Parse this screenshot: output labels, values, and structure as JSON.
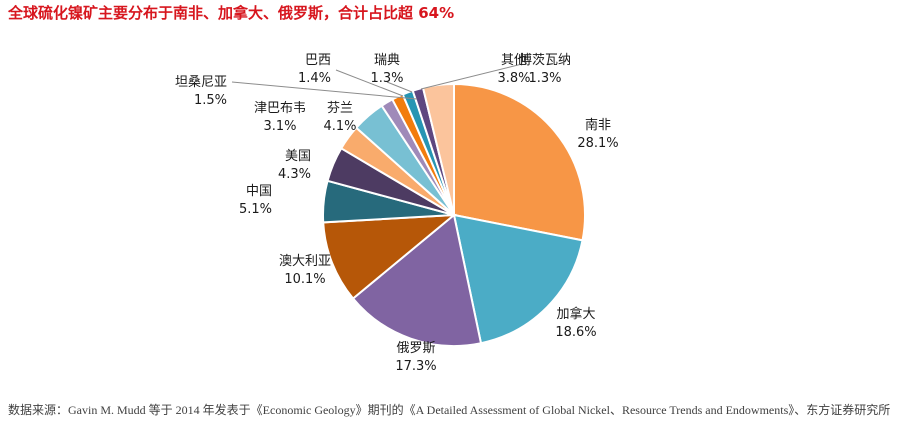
{
  "chart_data": {
    "type": "pie",
    "title": "全球硫化镍矿主要分布于南非、加拿大、俄罗斯，合计占比超 64%",
    "slices": [
      {
        "label": "南非",
        "value": 28.1,
        "display": "28.1%",
        "color": "#f79646"
      },
      {
        "label": "加拿大",
        "value": 18.6,
        "display": "18.6%",
        "color": "#4bacc6"
      },
      {
        "label": "俄罗斯",
        "value": 17.3,
        "display": "17.3%",
        "color": "#8064a2"
      },
      {
        "label": "澳大利亚",
        "value": 10.1,
        "display": "10.1%",
        "color": "#b65708"
      },
      {
        "label": "中国",
        "value": 5.1,
        "display": "5.1%",
        "color": "#276a7c"
      },
      {
        "label": "美国",
        "value": 4.3,
        "display": "4.3%",
        "color": "#4d3b62"
      },
      {
        "label": "津巴布韦",
        "value": 3.1,
        "display": "3.1%",
        "color": "#f9ab6c"
      },
      {
        "label": "芬兰",
        "value": 4.1,
        "display": "4.1%",
        "color": "#78c0d3"
      },
      {
        "label": "坦桑尼亚",
        "value": 1.5,
        "display": "1.5%",
        "color": "#9f8ab9"
      },
      {
        "label": "巴西",
        "value": 1.4,
        "display": "1.4%",
        "color": "#f27c0d"
      },
      {
        "label": "瑞典",
        "value": 1.3,
        "display": "1.3%",
        "color": "#2795b3"
      },
      {
        "label": "博茨瓦纳",
        "value": 1.3,
        "display": "1.3%",
        "color": "#5e4780"
      },
      {
        "label": "其他",
        "value": 3.8,
        "display": "3.8%",
        "color": "#fbc49c"
      }
    ]
  },
  "source_note": "数据来源：Gavin M. Mudd 等于 2014 年发表于《Economic Geology》期刊的《A Detailed Assessment of Global Nickel、Resource Trends and Endowments》、东方证券研究所"
}
